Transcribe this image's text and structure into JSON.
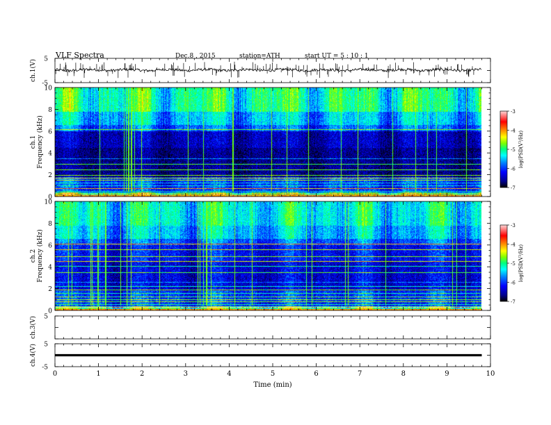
{
  "header": {
    "title": "VLF  Spectra",
    "date": "Dec.8  , 2015",
    "station": "station=ATH",
    "start": "start  UT  =    5  : 10 : 1"
  },
  "chart_data": [
    {
      "type": "line",
      "ylabel": "ch.1(V)",
      "ylim": [
        -5,
        5
      ],
      "yticks": [
        "5",
        "-5"
      ],
      "trace_level": 0.2,
      "spikes": true
    },
    {
      "type": "heatmap",
      "ylabel_channel": "ch.1",
      "ylabel": "Frequency  (kHz)",
      "ylim": [
        0,
        10
      ],
      "yticks": [
        "0",
        "2",
        "4",
        "6",
        "8",
        "10"
      ],
      "xlim": [
        0,
        10
      ],
      "data_end_min": 9.8,
      "colorbar": {
        "label": "log(PSD(V²/Hz)",
        "range": [
          -7,
          -3
        ],
        "ticks": [
          "-3",
          "-4",
          "-5",
          "-6",
          "-7"
        ]
      }
    },
    {
      "type": "heatmap",
      "ylabel_channel": "ch.2",
      "ylabel": "Frequency  (kHz)",
      "ylim": [
        0,
        10
      ],
      "yticks": [
        "0",
        "2",
        "4",
        "6",
        "8",
        "10"
      ],
      "xlim": [
        0,
        10
      ],
      "data_end_min": 9.8,
      "colorbar": {
        "label": "log(PSD(V²/Hz)",
        "range": [
          -7,
          -3
        ],
        "ticks": [
          "-3",
          "-4",
          "-5",
          "-6",
          "-7"
        ]
      }
    },
    {
      "type": "line",
      "ylabel": "ch.3(V)",
      "ylim": [
        -5,
        5
      ],
      "yticks": [
        "5"
      ],
      "trace": "none"
    },
    {
      "type": "line",
      "ylabel": "ch.4(V)",
      "ylim": [
        -5,
        5
      ],
      "yticks": [
        "5",
        "-5"
      ],
      "trace_level": 0.0
    }
  ],
  "x_axis": {
    "label": "Time  (min)",
    "ticks": [
      "0",
      "1",
      "2",
      "3",
      "4",
      "5",
      "6",
      "7",
      "8",
      "9",
      "10"
    ]
  },
  "colors": {
    "scale": [
      "#000000",
      "#00008b",
      "#0000ff",
      "#0080ff",
      "#00ffff",
      "#00ff80",
      "#80ff00",
      "#ffff00",
      "#ff8000",
      "#ff0000",
      "#ffd0d0"
    ]
  }
}
